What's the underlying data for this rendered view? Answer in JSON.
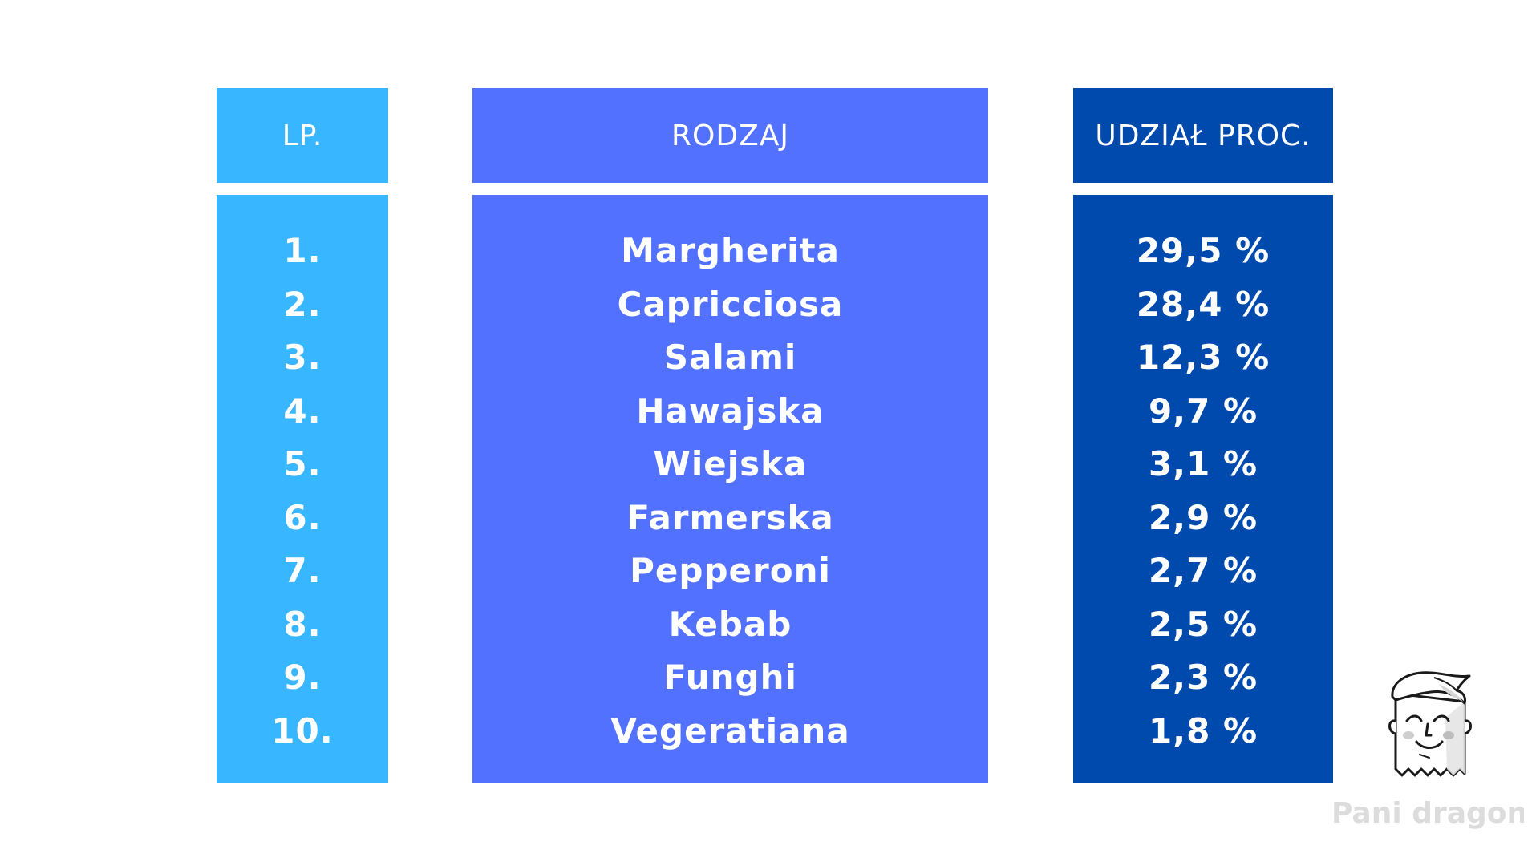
{
  "table": {
    "headers": {
      "lp": "LP.",
      "rodzaj": "RODZAJ",
      "udzial": "UDZIAŁ PROC."
    },
    "rows": [
      {
        "lp": "1.",
        "rodzaj": "Margherita",
        "udzial": "29,5 %"
      },
      {
        "lp": "2.",
        "rodzaj": "Capricciosa",
        "udzial": "28,4 %"
      },
      {
        "lp": "3.",
        "rodzaj": "Salami",
        "udzial": "12,3 %"
      },
      {
        "lp": "4.",
        "rodzaj": "Hawajska",
        "udzial": "9,7 %"
      },
      {
        "lp": "5.",
        "rodzaj": "Wiejska",
        "udzial": "3,1 %"
      },
      {
        "lp": "6.",
        "rodzaj": "Farmerska",
        "udzial": "2,9 %"
      },
      {
        "lp": "7.",
        "rodzaj": "Pepperoni",
        "udzial": "2,7 %"
      },
      {
        "lp": "8.",
        "rodzaj": "Kebab",
        "udzial": "2,5 %"
      },
      {
        "lp": "9.",
        "rodzaj": "Funghi",
        "udzial": "2,3 %"
      },
      {
        "lp": "10.",
        "rodzaj": "Vegeratiana",
        "udzial": "1,8 %"
      }
    ]
  },
  "colors": {
    "lp_column": "#38b6ff",
    "rodzaj_column": "#5271ff",
    "udzial_column": "#004aad"
  },
  "branding": {
    "mascot_icon": "receipt-mascot-icon",
    "name": "Pani dragon"
  }
}
